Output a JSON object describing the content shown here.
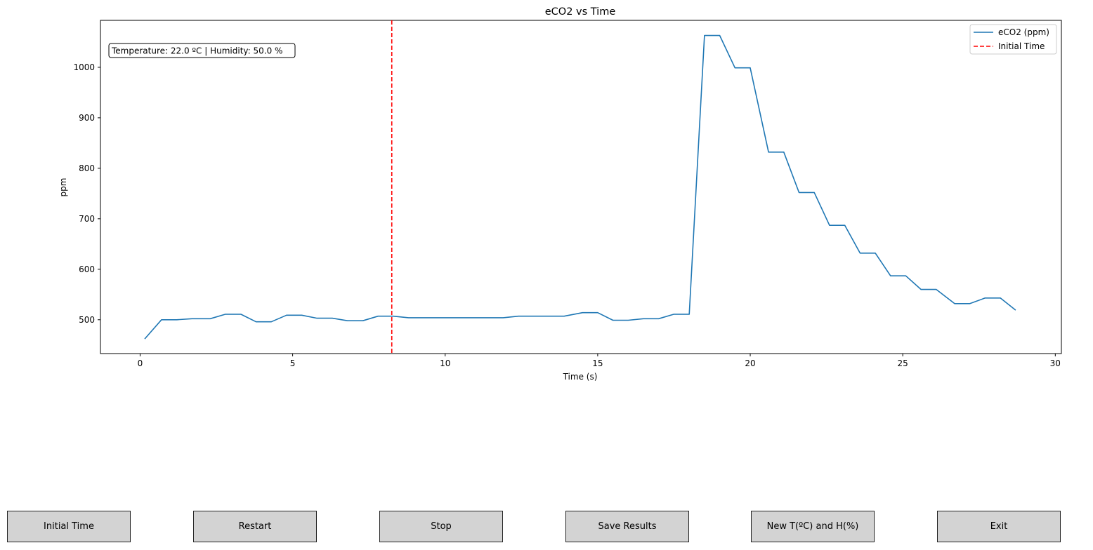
{
  "chart_data": {
    "type": "line",
    "title": "eCO2 vs Time",
    "xlabel": "Time (s)",
    "ylabel": "ppm",
    "xlim": [
      -1.3,
      30.2
    ],
    "ylim": [
      433,
      1093
    ],
    "xticks": [
      0,
      5,
      10,
      15,
      20,
      25,
      30
    ],
    "yticks": [
      500,
      600,
      700,
      800,
      900,
      1000
    ],
    "grid": false,
    "legend_position": "top-right",
    "annotation": "Temperature: 22.0 ºC | Humidity: 50.0 %",
    "series": [
      {
        "name": "eCO2 (ppm)",
        "color": "#1f77b4",
        "style": "solid",
        "x": [
          0.15,
          0.7,
          1.2,
          1.7,
          2.3,
          2.8,
          3.3,
          3.8,
          4.3,
          4.8,
          5.3,
          5.8,
          6.3,
          6.8,
          7.3,
          7.8,
          8.3,
          8.8,
          9.3,
          9.9,
          10.4,
          10.9,
          11.4,
          11.9,
          12.4,
          12.9,
          13.4,
          13.9,
          14.5,
          15.0,
          15.5,
          16.0,
          16.5,
          17.0,
          17.5,
          18.0,
          18.5,
          19.0,
          19.5,
          20.0,
          20.6,
          21.1,
          21.6,
          22.1,
          22.6,
          23.1,
          23.6,
          24.1,
          24.6,
          25.1,
          25.6,
          26.1,
          26.7,
          27.2,
          27.7,
          28.2,
          28.7
        ],
        "y": [
          462,
          500,
          500,
          502,
          502,
          511,
          511,
          496,
          496,
          509,
          509,
          503,
          503,
          498,
          498,
          507,
          507,
          504,
          504,
          504,
          504,
          504,
          504,
          504,
          507,
          507,
          507,
          507,
          514,
          514,
          499,
          499,
          502,
          502,
          511,
          511,
          1063,
          1063,
          999,
          999,
          832,
          832,
          752,
          752,
          687,
          687,
          632,
          632,
          587,
          587,
          560,
          560,
          532,
          532,
          543,
          543,
          519
        ]
      }
    ],
    "vlines": [
      {
        "name": "Initial Time",
        "x": 8.25,
        "color": "#ff0000",
        "style": "dashed"
      }
    ]
  },
  "buttons": {
    "initial_time": "Initial Time",
    "restart": "Restart",
    "stop": "Stop",
    "save_results": "Save Results",
    "new_th": "New T(ºC) and H(%)",
    "exit": "Exit"
  }
}
